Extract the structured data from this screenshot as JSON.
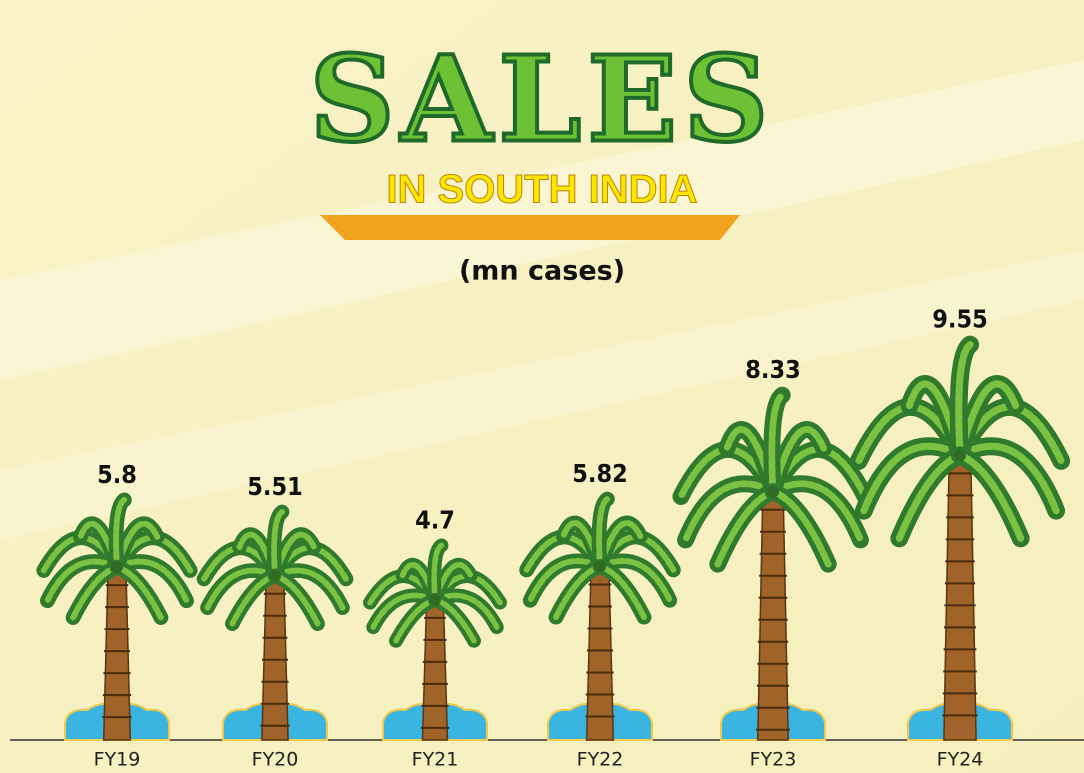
{
  "chart_data": {
    "type": "bar",
    "title": "SALES",
    "subtitle": "IN SOUTH INDIA",
    "unit_label": "(mn cases)",
    "categories": [
      "FY19",
      "FY20",
      "FY21",
      "FY22",
      "FY23",
      "FY24"
    ],
    "values": [
      5.8,
      5.51,
      4.7,
      5.82,
      8.33,
      9.55
    ],
    "color": "#4e9a2c"
  }
}
